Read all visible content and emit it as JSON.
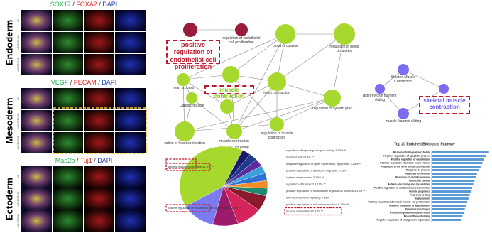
{
  "panels": [
    {
      "layer": "Endoderm",
      "stains": [
        {
          "text": "SOX17",
          "color": "#22b14c"
        },
        {
          "text": " / ",
          "color": "#333333"
        },
        {
          "text": "FOXA2",
          "color": "#e02424"
        },
        {
          "text": " / ",
          "color": "#333333"
        },
        {
          "text": "DAPI",
          "color": "#1e3fa8"
        }
      ],
      "rows": [
        "H9",
        "miR-5739 KO",
        "miR-5739 #8"
      ]
    },
    {
      "layer": "Mesoderm",
      "stains": [
        {
          "text": "VEGF",
          "color": "#22b14c"
        },
        {
          "text": " / ",
          "color": "#333333"
        },
        {
          "text": "PECAM",
          "color": "#e02424"
        },
        {
          "text": " / ",
          "color": "#333333"
        },
        {
          "text": "DAPI",
          "color": "#1e3fa8"
        }
      ],
      "rows": [
        "H9",
        "miR-5739 KO",
        "miR-5739 #8"
      ]
    },
    {
      "layer": "Ectoderm",
      "stains": [
        {
          "text": "Map2b",
          "color": "#22b14c"
        },
        {
          "text": " / ",
          "color": "#333333"
        },
        {
          "text": "Tuj1",
          "color": "#e02424"
        },
        {
          "text": " / ",
          "color": "#333333"
        },
        {
          "text": "DAPI",
          "color": "#1e3fa8"
        }
      ],
      "rows": [
        "H9",
        "miR-5739 KO",
        "miR-5739 #8"
      ]
    }
  ],
  "network": {
    "nodes": [
      {
        "label": null,
        "color": "#9b1b3a"
      },
      {
        "label": "regulation of endothelial cell proliferation",
        "color": "#9b1b3a"
      },
      {
        "label": "blood circulation",
        "color": "#a6d82e"
      },
      {
        "label": "regulation of blood circulation",
        "color": "#a6d82e"
      },
      {
        "label": "heart process",
        "color": "#a6d82e"
      },
      {
        "label": null,
        "color": "#a6d82e"
      },
      {
        "label": "heart contraction",
        "color": "#a6d82e"
      },
      {
        "label": "Cardiac muscle",
        "color": "#a6d82e"
      },
      {
        "label": "regulation of system proc",
        "color": "#a6d82e"
      },
      {
        "label": "cation of heart contraction",
        "color": "#a6d82e"
      },
      {
        "label": null,
        "color": "#a6d82e"
      },
      {
        "label": "muscle contraction",
        "color": "#a6d82e"
      },
      {
        "label": "regulation of muscle contraction",
        "color": "#a6d82e"
      },
      {
        "label": "Striated Muscle Contraction",
        "color": "#7b6cf0"
      },
      {
        "label": "actin-myosin filament sliding",
        "color": "#7b6cf0"
      },
      {
        "label": null,
        "color": "#7b6cf0"
      },
      {
        "label": "muscle filament sliding",
        "color": "#7b6cf0"
      }
    ],
    "callouts": [
      {
        "text": "positive regulation of endothelial cell proliferation",
        "color": "#c0182f"
      },
      {
        "text": "muscle contraction",
        "color": "#8cc21f"
      },
      {
        "text": "skeletal muscle contraction",
        "color": "#6f63e8"
      }
    ]
  },
  "pie": {
    "title": "% terms per group",
    "slices": [
      {
        "label": "muscle contraction 40.63% **",
        "value": 40.63,
        "color": "#a6d82e"
      },
      {
        "label": "skeletal muscle contraction 12.5% **",
        "value": 12.5,
        "color": "#7b7cf0"
      },
      {
        "label": "positive regulation of cell communication 9.38% **",
        "value": 9.38,
        "color": "#9b1b6a"
      },
      {
        "label": "interferon-gamma signaling 9.38% **",
        "value": 9.38,
        "color": "#d4245a"
      },
      {
        "label": "positive regulation of endothelial cell proliferation 6.25% **",
        "value": 6.25,
        "color": "#8a1a2e"
      },
      {
        "label": "positive regulation of multicellular organismal process 3.13% **",
        "value": 3.13,
        "color": "#1f8a70"
      },
      {
        "label": "regulation of transport 3.13% **",
        "value": 3.13,
        "color": "#f28c28"
      },
      {
        "label": "system development 3.13% **",
        "value": 3.13,
        "color": "#2f6fd6"
      },
      {
        "label": "positive regulation of leukocyte migration 3.13% **",
        "value": 3.13,
        "color": "#3aa0d8"
      },
      {
        "label": "negative regulation of gene expression, epigenetic 3.13% **",
        "value": 3.13,
        "color": "#5a2ca0"
      },
      {
        "label": "ion transport 3.13% **",
        "value": 3.13,
        "color": "#1e3a8a"
      },
      {
        "label": "regulation of signaling receptor activity 3.13% **",
        "value": 3.13,
        "color": "#1a1a6e"
      }
    ],
    "boxed": [
      0,
      1,
      4
    ]
  },
  "bars": {
    "title": "Top 20 Enriched Biological Pathway",
    "color": "#5b9bd5",
    "categories": [
      "Response to lipopolysaccharide",
      "Negative regulation of apoptotic process",
      "Positive regulation of vasodilation",
      "Positive regulation of cardiac muscle tissue",
      "Regulation of the force of heart contraction",
      "Response to glucose",
      "Response to hormone",
      "Response to peptide hormone",
      "Ventricular cardiac",
      "Antigen processing and presentation",
      "Positive regulation of cardiac muscle contraction",
      "Female pregnancy",
      "Response to drug",
      "Angiogenesis",
      "Positive regulation of smooth muscle cell proliferation",
      "Negative regulation of angiogenesis",
      "Response to estrogen",
      "Positive regulation of transcription",
      "Muscle filament sliding",
      "Negative regulation of viral genome replication"
    ],
    "values": [
      9.5,
      9,
      8.7,
      8.4,
      8.1,
      7.8,
      7.5,
      7.3,
      7.1,
      6.9,
      6.7,
      6.5,
      6.3,
      6.1,
      5.9,
      5.7,
      5.5,
      5.3,
      5.1,
      4.9
    ]
  }
}
